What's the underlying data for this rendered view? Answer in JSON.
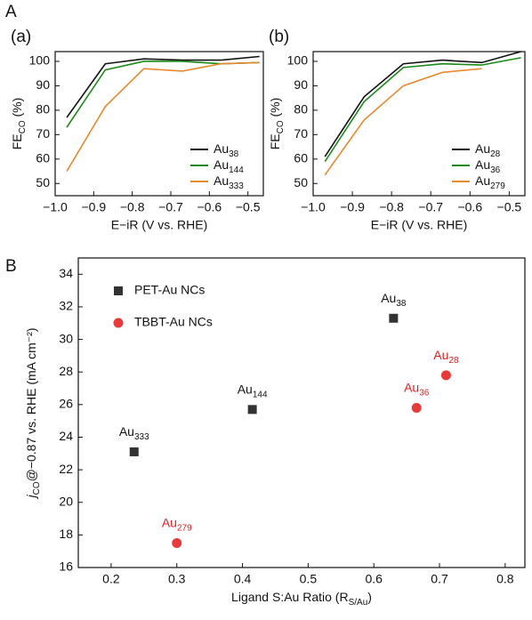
{
  "figure_label_top": "A",
  "figure_label_bottom": "B",
  "chart_data": [
    {
      "type": "line",
      "panel": "(a)",
      "xlabel": "E−iR (V vs. RHE)",
      "ylabel": [
        "FE",
        "CO",
        " (%)"
      ],
      "x": [
        -0.97,
        -0.87,
        -0.77,
        -0.67,
        -0.57,
        -0.47
      ],
      "series": [
        {
          "name": [
            "Au",
            "38"
          ],
          "color": "#111111",
          "values": [
            77,
            99,
            101,
            100.5,
            100.5,
            102
          ]
        },
        {
          "name": [
            "Au",
            "144"
          ],
          "color": "#1a8a1a",
          "values": [
            73,
            96.5,
            100,
            100,
            99,
            99.5
          ]
        },
        {
          "name": [
            "Au",
            "333"
          ],
          "color": "#e8892e",
          "values": [
            55,
            81.5,
            97,
            96,
            99,
            99.5
          ]
        }
      ],
      "xlim": [
        -1.0,
        -0.46
      ],
      "ylim": [
        45,
        104
      ],
      "xticks": [
        {
          "value": -1.0,
          "label": "−1.0"
        },
        {
          "value": -0.9,
          "label": "−0.9"
        },
        {
          "value": -0.8,
          "label": "−0.8"
        },
        {
          "value": -0.7,
          "label": "−0.7"
        },
        {
          "value": -0.6,
          "label": "−0.6"
        },
        {
          "value": -0.5,
          "label": "−0.5"
        }
      ],
      "yticks": [
        50,
        60,
        70,
        80,
        90,
        100
      ],
      "legend": "lower right"
    },
    {
      "type": "line",
      "panel": "(b)",
      "xlabel": "E−iR (V vs. RHE)",
      "ylabel": [
        "FE",
        "CO",
        " (%)"
      ],
      "x": [
        -0.97,
        -0.87,
        -0.77,
        -0.67,
        -0.57,
        -0.47
      ],
      "series": [
        {
          "name": [
            "Au",
            "28"
          ],
          "color": "#111111",
          "values": [
            61,
            85.5,
            99,
            100.5,
            99.5,
            104
          ]
        },
        {
          "name": [
            "Au",
            "36"
          ],
          "color": "#1a8a1a",
          "values": [
            59,
            83.5,
            97.5,
            99,
            98.5,
            101.5
          ]
        },
        {
          "name": [
            "Au",
            "279"
          ],
          "color": "#e8892e",
          "values": [
            53.5,
            76,
            90,
            95.5,
            97,
            null
          ]
        }
      ],
      "xlim": [
        -1.0,
        -0.46
      ],
      "ylim": [
        45,
        104
      ],
      "xticks": [
        {
          "value": -1.0,
          "label": "−1.0"
        },
        {
          "value": -0.9,
          "label": "−0.9"
        },
        {
          "value": -0.8,
          "label": "−0.8"
        },
        {
          "value": -0.7,
          "label": "−0.7"
        },
        {
          "value": -0.6,
          "label": "−0.6"
        },
        {
          "value": -0.5,
          "label": "−0.5"
        }
      ],
      "yticks": [
        50,
        60,
        70,
        80,
        90,
        100
      ],
      "legend": "lower right"
    },
    {
      "type": "scatter",
      "xlabel": [
        "Ligand S:Au Ratio (R",
        "S/Au",
        ")"
      ],
      "ylabel": [
        "j",
        "CO",
        "@−0.87 vs. RHE (mA cm⁻²)"
      ],
      "series": [
        {
          "name": "PET-Au NCs",
          "color": "#333333",
          "label_color": "#111111",
          "marker": "square",
          "x": [
            0.235,
            0.415,
            0.63
          ],
          "values": [
            23.1,
            25.7,
            31.3
          ],
          "point_labels": [
            [
              "Au",
              "333"
            ],
            [
              "Au",
              "144"
            ],
            [
              "Au",
              "38"
            ]
          ]
        },
        {
          "name": "TBBT-Au NCs",
          "color": "#e83a3a",
          "label_color": "#e02020",
          "marker": "circle",
          "x": [
            0.3,
            0.665,
            0.71
          ],
          "values": [
            17.5,
            25.8,
            27.8
          ],
          "point_labels": [
            [
              "Au",
              "279"
            ],
            [
              "Au",
              "36"
            ],
            [
              "Au",
              "28"
            ]
          ]
        }
      ],
      "xlim": [
        0.15,
        0.83
      ],
      "ylim": [
        16,
        35
      ],
      "xticks": [
        0.2,
        0.3,
        0.4,
        0.5,
        0.6,
        0.7,
        0.8
      ],
      "yticks": [
        16,
        18,
        20,
        22,
        24,
        26,
        28,
        30,
        32,
        34
      ],
      "legend": "upper left"
    }
  ]
}
